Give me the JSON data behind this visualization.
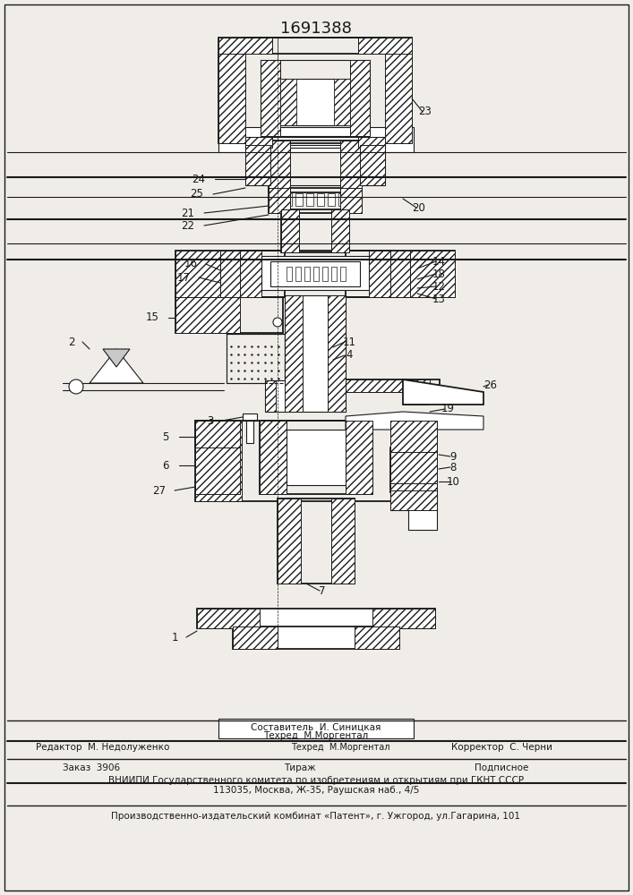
{
  "patent_number": "1691388",
  "bg_color": "#f0ede8",
  "line_color": "#1a1a1a",
  "fig_width": 7.07,
  "fig_height": 10.0,
  "dpi": 100,
  "footer": {
    "sestavitel": "Составитель  И. Синицкая",
    "tehred": "Техред  М.Моргентал",
    "redaktor": "Редактор  М. Недолуженко",
    "korrektor": "Корректор  С. Черни",
    "zakaz": "Заказ  3906",
    "tirazh": "Тираж",
    "podpisnoe": "Подписное",
    "vniipи": "ВНИИПИ Государственного комитета по изобретениям и открытиям при ГКНТ СССР",
    "address": "113035, Москва, Ж-35, Раушская наб., 4/5",
    "publisher": "Производственно-издательский комбинат «Патент», г. Ужгород, ул.Гагарина, 101"
  }
}
